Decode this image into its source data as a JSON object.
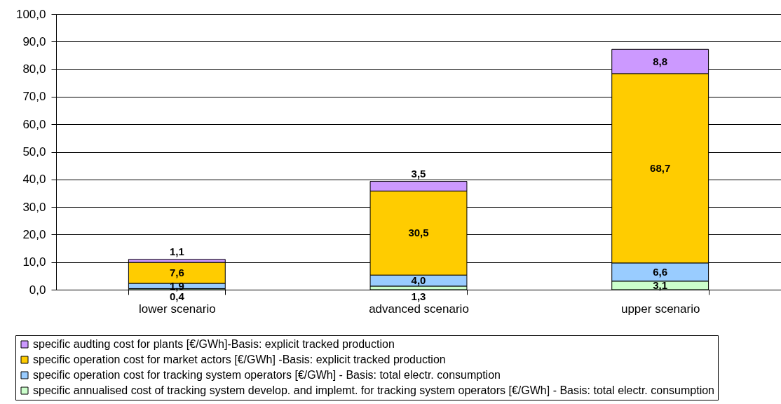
{
  "chart_data": {
    "type": "bar",
    "stacked": true,
    "categories": [
      "lower scenario",
      "advanced scenario",
      "upper scenario"
    ],
    "series": [
      {
        "name": "specific annualised cost of tracking system develop. and implemt. for tracking system operators [€/GWh] - Basis: total electr. consumption",
        "color": "#ccffcc",
        "values": [
          0.4,
          1.3,
          3.1
        ],
        "value_labels": [
          "0,4",
          "1,3",
          "3,1"
        ]
      },
      {
        "name": "specific operation cost for tracking system operators [€/GWh] - Basis: total electr. consumption",
        "color": "#99ccff",
        "values": [
          1.9,
          4.0,
          6.6
        ],
        "value_labels": [
          "1,9",
          "4,0",
          "6,6"
        ]
      },
      {
        "name": "specific operation cost for market actors [€/GWh] -Basis: explicit tracked production",
        "color": "#ffcc00",
        "values": [
          7.6,
          30.5,
          68.7
        ],
        "value_labels": [
          "7,6",
          "30,5",
          "68,7"
        ]
      },
      {
        "name": "specific audting cost for plants [€/GWh]-Basis: explicit tracked production",
        "color": "#cc99ff",
        "values": [
          1.1,
          3.5,
          8.8
        ],
        "value_labels": [
          "1,1",
          "3,5",
          "8,8"
        ]
      }
    ],
    "ylim": [
      0,
      100
    ],
    "yticks": [
      {
        "value": 0,
        "label": "0,0"
      },
      {
        "value": 10,
        "label": "10,0"
      },
      {
        "value": 20,
        "label": "20,0"
      },
      {
        "value": 30,
        "label": "30,0"
      },
      {
        "value": 40,
        "label": "40,0"
      },
      {
        "value": 50,
        "label": "50,0"
      },
      {
        "value": 60,
        "label": "60,0"
      },
      {
        "value": 70,
        "label": "70,0"
      },
      {
        "value": 80,
        "label": "80,0"
      },
      {
        "value": 90,
        "label": "90,0"
      },
      {
        "value": 100,
        "label": "100,0"
      }
    ],
    "grid": "y",
    "legend": "bottom"
  }
}
